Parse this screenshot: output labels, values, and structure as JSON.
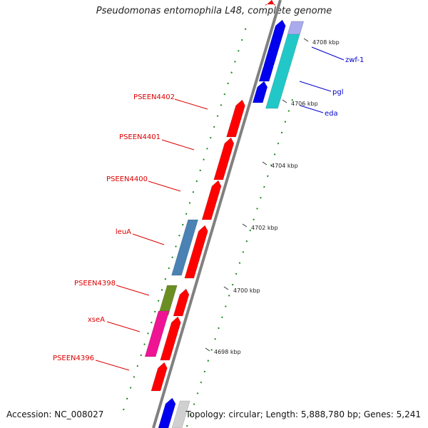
{
  "title": "Pseudomonas entomophila L48, complete genome",
  "accession": "Accession: NC_008027",
  "topology": "Topology: circular; Length: 5,888,780 bp; Genes: 5,241",
  "colors": {
    "red": "#ff0000",
    "blue": "#0000ee",
    "cyan": "#22c8c8",
    "steel": "#4a82b4",
    "olive": "#6b8e23",
    "pink": "#ee1493",
    "gray": "#d0d0d0",
    "backbone": "#808080",
    "tick": "#1a8a1a",
    "red_label": "#dd0000",
    "blue_label": "#0000cc"
  },
  "ticks": [
    {
      "text": "4698 kbp"
    },
    {
      "text": "4700 kbp"
    },
    {
      "text": "4702 kbp"
    },
    {
      "text": "4704 kbp"
    },
    {
      "text": "4706 kbp"
    },
    {
      "text": "4708 kbp"
    }
  ],
  "genes_left": [
    {
      "label": "PSEEN4402"
    },
    {
      "label": "PSEEN4401"
    },
    {
      "label": "PSEEN4400"
    },
    {
      "label": "leuA"
    },
    {
      "label": "PSEEN4398"
    },
    {
      "label": "xseA"
    },
    {
      "label": "PSEEN4396"
    }
  ],
  "genes_right": [
    {
      "label": "zwf-1"
    },
    {
      "label": "pgl"
    },
    {
      "label": "eda"
    }
  ]
}
